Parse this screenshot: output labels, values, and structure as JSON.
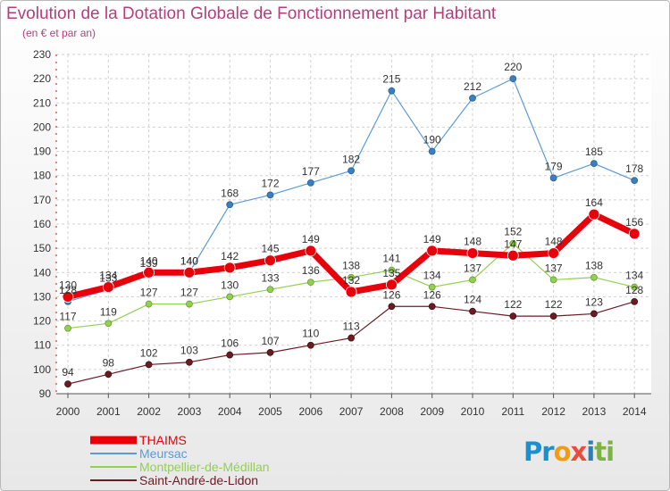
{
  "chart_data": {
    "type": "line",
    "title": "Evolution de la Dotation Globale de Fonctionnement par Habitant",
    "subtitle": "(en € et par an)",
    "x": [
      "2000",
      "2001",
      "2002",
      "2003",
      "2004",
      "2005",
      "2006",
      "2007",
      "2008",
      "2009",
      "2010",
      "2011",
      "2012",
      "2013",
      "2014"
    ],
    "yticks": [
      90,
      100,
      110,
      120,
      130,
      140,
      150,
      160,
      170,
      180,
      190,
      200,
      210,
      220,
      230
    ],
    "ylim": [
      90,
      230
    ],
    "grid": true,
    "legend_position": "bottom-left",
    "series": [
      {
        "name": "THAIMS",
        "color": "#e8000b",
        "values": [
          130,
          134,
          140,
          140,
          142,
          145,
          149,
          132,
          135,
          149,
          148,
          147,
          148,
          164,
          156
        ]
      },
      {
        "name": "Meursac",
        "color": "#5b9bd5",
        "values": [
          128,
          133,
          139,
          140,
          168,
          172,
          177,
          182,
          215,
          190,
          212,
          220,
          179,
          185,
          178
        ]
      },
      {
        "name": "Montpellier-de-Médillan",
        "color": "#92d050",
        "values": [
          117,
          119,
          127,
          127,
          130,
          133,
          136,
          138,
          141,
          134,
          137,
          152,
          137,
          138,
          134
        ]
      },
      {
        "name": "Saint-André-de-Lidon",
        "color": "#6b1c23",
        "values": [
          94,
          98,
          102,
          103,
          106,
          107,
          110,
          113,
          126,
          126,
          124,
          122,
          122,
          123,
          128
        ]
      }
    ],
    "point_labels": [
      [
        "130",
        "134",
        "140",
        "140",
        "142",
        "145",
        "149",
        "132",
        "135",
        "149",
        "148",
        "147",
        "148",
        "164",
        "156"
      ],
      [
        "128",
        "133",
        "139",
        "140",
        "168",
        "172",
        "177",
        "182",
        "215",
        "190",
        "212",
        "220",
        "179",
        "185",
        "178"
      ],
      [
        "117",
        "119",
        "127",
        "127",
        "130",
        "133",
        "136",
        "138",
        "141",
        "134",
        "137",
        "152",
        "137",
        "138",
        "134"
      ],
      [
        "94",
        "98",
        "102",
        "103",
        "106",
        "107",
        "110",
        "113",
        "126",
        "126",
        "124",
        "122",
        "122",
        "123",
        "128"
      ]
    ]
  },
  "logo": {
    "letters": [
      "P",
      "r",
      "o",
      "x",
      "i",
      "t",
      "i"
    ],
    "colors": [
      "#1a8fd1",
      "#1a8fd1",
      "#f39c12",
      "#e74c3c",
      "#2c7fb8",
      "#7cb342",
      "#7cb342"
    ]
  }
}
